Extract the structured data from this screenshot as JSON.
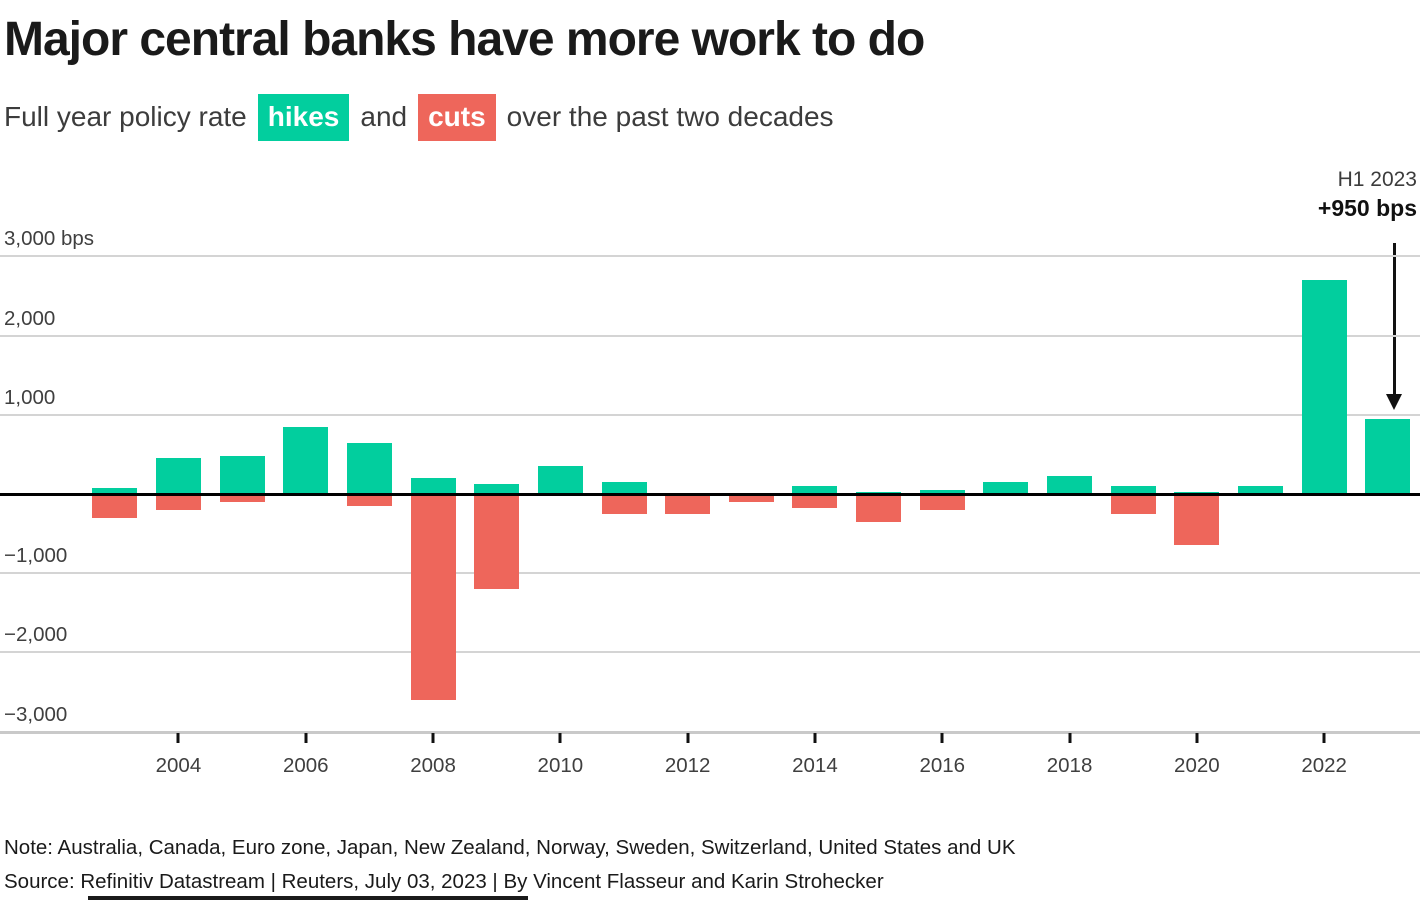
{
  "header": {
    "title": "Major central banks have more work to do",
    "subtitle_prefix": "Full year policy rate",
    "hikes_label": "hikes",
    "mid_text": "and",
    "cuts_label": "cuts",
    "subtitle_suffix": "over the past two decades"
  },
  "annotation": {
    "line1": "H1 2023",
    "line2": "+950 bps"
  },
  "colors": {
    "hike": "#02CE9E",
    "cut": "#EE665B",
    "grid": "#d4d4d4",
    "zero_line": "#000000",
    "baseline": "#c9c9c9",
    "title_text": "#1a1a1a",
    "label_text": "#3f3f3f"
  },
  "chart_data": {
    "type": "bar",
    "title": "Major central banks have more work to do",
    "subtitle": "Full year policy rate hikes and cuts over the past two decades",
    "unit": "bps",
    "categories": [
      2003,
      2004,
      2005,
      2006,
      2007,
      2008,
      2009,
      2010,
      2011,
      2012,
      2013,
      2014,
      2015,
      2016,
      2017,
      2018,
      2019,
      2020,
      2021,
      2022,
      2023
    ],
    "series": [
      {
        "name": "hikes",
        "values": [
          75,
          450,
          475,
          850,
          650,
          200,
          125,
          350,
          150,
          0,
          0,
          100,
          25,
          50,
          150,
          225,
          100,
          25,
          100,
          2700,
          950
        ]
      },
      {
        "name": "cuts",
        "values": [
          -300,
          -200,
          -100,
          0,
          -150,
          -2600,
          -1200,
          0,
          -250,
          -250,
          -100,
          -175,
          -350,
          -200,
          0,
          0,
          -250,
          -650,
          0,
          0,
          0
        ]
      }
    ],
    "ylim": [
      -3000,
      3000
    ],
    "grid": true,
    "legend_position": "inline-subtitle",
    "yticks": [
      {
        "value": 3000,
        "label": "3,000 bps"
      },
      {
        "value": 2000,
        "label": "2,000"
      },
      {
        "value": 1000,
        "label": "1,000"
      },
      {
        "value": -1000,
        "label": "−1,000"
      },
      {
        "value": -2000,
        "label": "−2,000"
      },
      {
        "value": -3000,
        "label": "−3,000"
      }
    ],
    "xticks": [
      2004,
      2006,
      2008,
      2010,
      2012,
      2014,
      2016,
      2018,
      2020,
      2022
    ],
    "annotation": {
      "target_year": 2023,
      "text": "H1 2023 +950 bps"
    }
  },
  "footer": {
    "note": "Note: Australia, Canada, Euro zone, Japan, New Zealand, Norway, Sweden, Switzerland, United States and UK",
    "source": "Source: Refinitiv Datastream | Reuters, July 03, 2023 | By Vincent Flasseur and Karin Strohecker"
  }
}
